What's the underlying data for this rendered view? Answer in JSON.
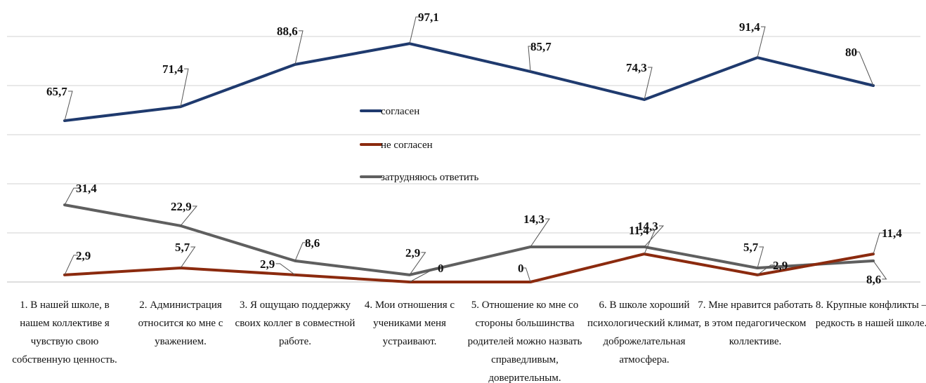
{
  "chart_data": {
    "type": "line",
    "title": "",
    "xlabel": "",
    "ylabel": "",
    "ylim": [
      0,
      100
    ],
    "grid": true,
    "y_axis_labels_shown": false,
    "legend_placement": "center",
    "categories": [
      [
        "1. В нашей школе, в",
        "нашем коллективе я",
        "чувствую свою",
        "собственную ценность."
      ],
      [
        "2. Администрация",
        "относится ко мне с",
        "уважением."
      ],
      [
        "3. Я ощущаю поддержку",
        "своих коллег в совместной",
        "работе."
      ],
      [
        "4. Мои отношения с",
        "учениками меня",
        "устраивают."
      ],
      [
        "5. Отношение ко мне со",
        "стороны большинства",
        "родителей можно назвать",
        "справедливым,",
        "доверительным."
      ],
      [
        "6. В школе хороший",
        "психологический климат,",
        "доброжелательная",
        "атмосфера."
      ],
      [
        "7. Мне нравится работать",
        "в этом педагогическом",
        "коллективе."
      ],
      [
        "8. Крупные конфликты –",
        "редкость в нашей школе."
      ]
    ],
    "series": [
      {
        "name": "согласен",
        "color": "#1f3a6e",
        "values": [
          65.7,
          71.4,
          88.6,
          97.1,
          85.7,
          74.3,
          91.4,
          80
        ],
        "labels": [
          "65,7",
          "71,4",
          "88,6",
          "97,1",
          "85,7",
          "74,3",
          "91,4",
          "80"
        ]
      },
      {
        "name": "не согласен",
        "color": "#8b2a0e",
        "values": [
          2.9,
          5.7,
          2.9,
          0,
          0,
          11.4,
          2.9,
          11.4
        ],
        "labels": [
          "2,9",
          "5,7",
          "2,9",
          "0",
          "0",
          "11,4",
          "2,9",
          "11,4"
        ]
      },
      {
        "name": "затрудняюсь ответить",
        "color": "#5f5f5f",
        "values": [
          31.4,
          22.9,
          8.6,
          2.9,
          14.3,
          14.3,
          5.7,
          8.6
        ],
        "labels": [
          "31,4",
          "22,9",
          "8,6",
          "2,9",
          "14,3",
          "14,3",
          "5,7",
          "8,6"
        ]
      }
    ]
  }
}
